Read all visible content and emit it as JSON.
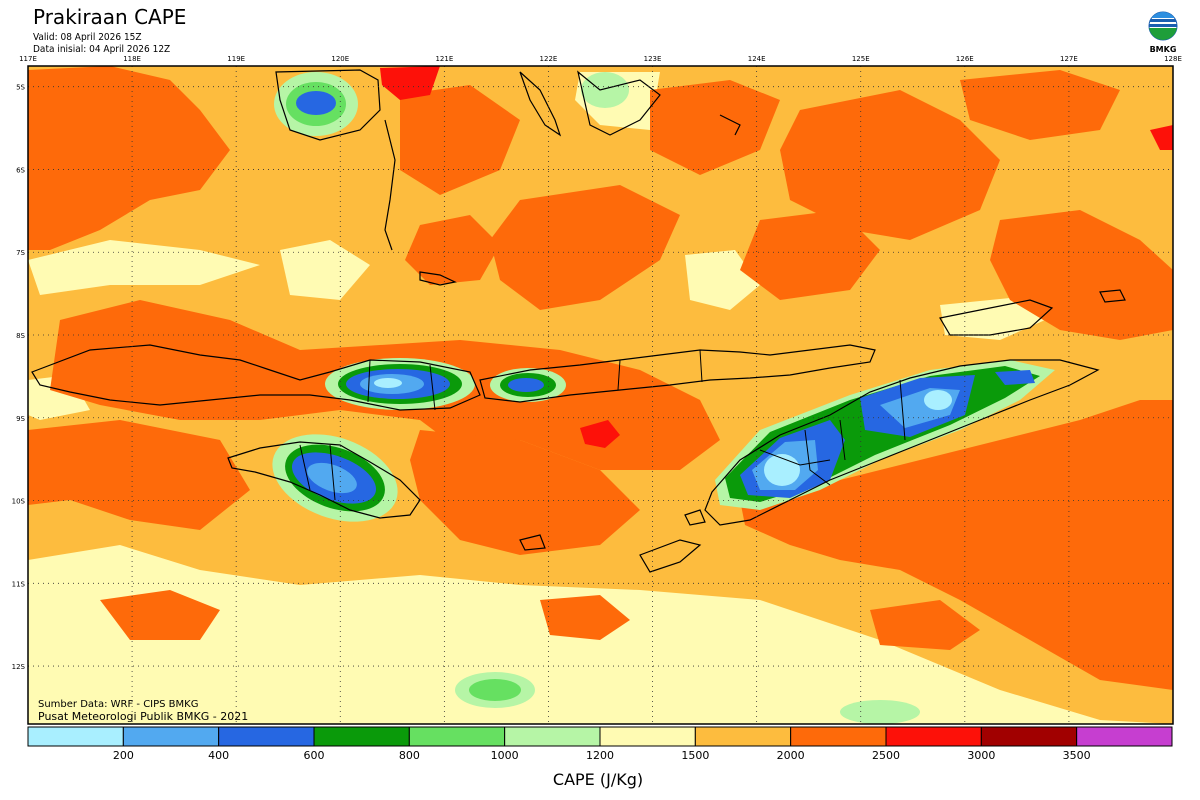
{
  "header": {
    "title": "Prakiraan CAPE",
    "valid": "Valid: 08 April 2026 15Z",
    "initial": "Data inisial: 04 April 2026 12Z",
    "logo_text": "BMKG"
  },
  "map": {
    "lon_labels": [
      "117E",
      "118E",
      "119E",
      "120E",
      "121E",
      "122E",
      "123E",
      "124E",
      "125E",
      "126E",
      "127E",
      "128E"
    ],
    "lat_labels": [
      "5S",
      "6S",
      "7S",
      "8S",
      "9S",
      "10S",
      "11S",
      "12S"
    ],
    "extent": {
      "lon": [
        117,
        128
      ],
      "lat": [
        -4.75,
        -12.7
      ]
    },
    "source_text": "Sumber Data: WRF - CIPS BMKG",
    "credit_text": "Pusat Meteorologi Publik BMKG - 2021"
  },
  "legend": {
    "title": "CAPE (J/Kg)",
    "tick_labels": [
      "200",
      "400",
      "600",
      "800",
      "1000",
      "1200",
      "1500",
      "2000",
      "2500",
      "3000",
      "3500"
    ],
    "colors": [
      "#a9efff",
      "#52a9f0",
      "#2667e2",
      "#0a9a0a",
      "#66e061",
      "#b6f5a6",
      "#fffbb3",
      "#fdbc3e",
      "#fe6a0a",
      "#fd1109",
      "#a10000",
      "#c63ed0"
    ]
  }
}
